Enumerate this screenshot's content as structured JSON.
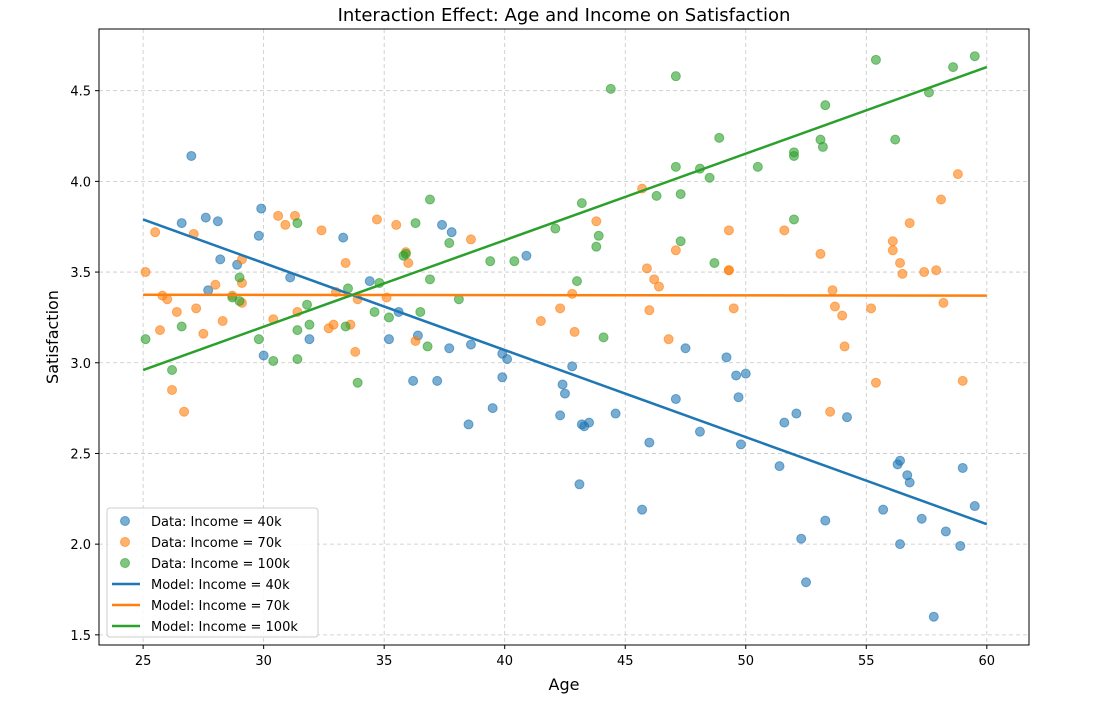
{
  "chart_data": {
    "type": "scatter",
    "title": "Interaction Effect: Age and Income on Satisfaction",
    "xlabel": "Age",
    "ylabel": "Satisfaction",
    "xlim": [
      23.17,
      61.75
    ],
    "ylim": [
      1.444,
      4.84
    ],
    "xticks": [
      25,
      30,
      35,
      40,
      45,
      50,
      55,
      60
    ],
    "xtick_labels": [
      "25",
      "30",
      "35",
      "40",
      "45",
      "50",
      "55",
      "60"
    ],
    "yticks": [
      1.5,
      2.0,
      2.5,
      3.0,
      3.5,
      4.0,
      4.5
    ],
    "ytick_labels": [
      "1.5",
      "2.0",
      "2.5",
      "3.0",
      "3.5",
      "4.0",
      "4.5"
    ],
    "grid": true,
    "legend_position": "lower-left",
    "scatter_series": [
      {
        "name": "Data: Income = 40k",
        "color": "#1f77b4",
        "x": [
          27.0,
          26.6,
          27.6,
          27.7,
          28.1,
          28.2,
          28.9,
          29.8,
          29.9,
          30.0,
          31.1,
          31.9,
          33.3,
          34.4,
          35.2,
          35.6,
          36.2,
          36.4,
          37.2,
          37.4,
          37.7,
          37.8,
          38.5,
          38.6,
          39.5,
          39.9,
          39.9,
          40.1,
          40.9,
          42.3,
          42.4,
          42.5,
          42.8,
          43.1,
          43.2,
          43.3,
          43.5,
          44.6,
          45.7,
          46.0,
          47.1,
          47.5,
          48.1,
          49.2,
          49.6,
          49.7,
          49.8,
          50.0,
          51.4,
          51.6,
          52.1,
          52.3,
          52.5,
          53.3,
          54.2,
          55.7,
          56.3,
          56.4,
          56.4,
          56.7,
          56.8,
          57.3,
          57.8,
          58.3,
          58.9,
          59.0,
          59.5
        ],
        "y": [
          4.14,
          3.77,
          3.8,
          3.4,
          3.78,
          3.57,
          3.54,
          3.7,
          3.85,
          3.04,
          3.47,
          3.13,
          3.69,
          3.45,
          3.13,
          3.28,
          2.9,
          3.15,
          2.9,
          3.76,
          3.08,
          3.72,
          2.66,
          3.1,
          2.75,
          3.05,
          2.92,
          3.02,
          3.59,
          2.71,
          2.88,
          2.83,
          2.98,
          2.33,
          2.66,
          2.65,
          2.67,
          2.72,
          2.19,
          2.56,
          2.8,
          3.08,
          2.62,
          3.03,
          2.93,
          2.81,
          2.55,
          2.94,
          2.43,
          2.67,
          2.72,
          2.03,
          1.79,
          2.13,
          2.7,
          2.19,
          2.44,
          2.0,
          2.46,
          2.38,
          2.34,
          2.14,
          1.6,
          2.07,
          1.99,
          2.42,
          2.21
        ]
      },
      {
        "name": "Data: Income = 70k",
        "color": "#ff7f0e",
        "x": [
          25.1,
          25.5,
          25.7,
          25.8,
          26.0,
          26.2,
          26.4,
          26.7,
          27.1,
          27.2,
          27.5,
          28.0,
          28.3,
          28.7,
          29.1,
          29.1,
          29.1,
          30.4,
          30.6,
          30.9,
          31.3,
          31.4,
          32.4,
          32.7,
          32.9,
          33.0,
          33.4,
          33.6,
          33.8,
          33.9,
          34.7,
          35.1,
          35.5,
          35.9,
          36.0,
          36.3,
          38.6,
          41.5,
          42.3,
          42.8,
          42.9,
          43.8,
          45.7,
          45.9,
          46.0,
          46.2,
          46.4,
          46.8,
          47.1,
          49.3,
          49.3,
          49.3,
          49.5,
          51.6,
          53.1,
          53.6,
          53.5,
          53.7,
          54.0,
          54.1,
          55.2,
          55.4,
          56.1,
          56.1,
          56.4,
          56.5,
          56.8,
          57.4,
          57.9,
          58.1,
          58.2,
          58.8,
          59.0
        ],
        "y": [
          3.5,
          3.72,
          3.18,
          3.37,
          3.35,
          2.85,
          3.28,
          2.73,
          3.71,
          3.3,
          3.16,
          3.43,
          3.23,
          3.37,
          3.33,
          3.57,
          3.44,
          3.24,
          3.81,
          3.76,
          3.81,
          3.28,
          3.73,
          3.19,
          3.21,
          3.39,
          3.55,
          3.21,
          3.06,
          3.35,
          3.79,
          3.36,
          3.76,
          3.61,
          3.55,
          3.12,
          3.68,
          3.23,
          3.3,
          3.38,
          3.17,
          3.78,
          3.96,
          3.52,
          3.29,
          3.46,
          3.42,
          3.13,
          3.62,
          3.73,
          3.51,
          3.51,
          3.3,
          3.73,
          3.6,
          3.4,
          2.73,
          3.31,
          3.26,
          3.09,
          3.3,
          2.89,
          3.67,
          3.62,
          3.55,
          3.49,
          3.77,
          3.5,
          3.51,
          3.9,
          3.33,
          4.04,
          2.9
        ]
      },
      {
        "name": "Data: Income = 100k",
        "color": "#2ca02c",
        "x": [
          25.1,
          26.2,
          26.6,
          28.7,
          29.0,
          29.0,
          29.8,
          30.4,
          31.4,
          31.4,
          31.4,
          31.8,
          31.9,
          33.4,
          33.5,
          33.9,
          34.6,
          34.8,
          35.2,
          35.8,
          35.9,
          36.3,
          36.5,
          36.8,
          36.9,
          36.9,
          37.7,
          38.1,
          39.4,
          40.4,
          42.1,
          43.0,
          43.2,
          43.8,
          43.9,
          44.1,
          44.4,
          46.3,
          47.1,
          47.1,
          47.3,
          47.3,
          48.1,
          48.5,
          48.7,
          48.9,
          50.5,
          52.0,
          52.0,
          52.0,
          53.1,
          53.2,
          53.3,
          55.4,
          56.2,
          57.6,
          58.6,
          59.5
        ],
        "y": [
          3.13,
          2.96,
          3.2,
          3.36,
          3.47,
          3.34,
          3.13,
          3.01,
          3.77,
          3.18,
          3.02,
          3.32,
          3.21,
          3.2,
          3.41,
          2.89,
          3.28,
          3.44,
          3.25,
          3.59,
          3.6,
          3.77,
          3.28,
          3.09,
          3.9,
          3.46,
          3.66,
          3.35,
          3.56,
          3.56,
          3.74,
          3.45,
          3.88,
          3.64,
          3.7,
          3.14,
          4.51,
          3.92,
          4.58,
          4.08,
          3.93,
          3.67,
          4.07,
          4.02,
          3.55,
          4.24,
          4.08,
          3.79,
          4.16,
          4.14,
          4.23,
          4.19,
          4.42,
          4.67,
          4.23,
          4.49,
          4.63,
          4.69
        ]
      }
    ],
    "line_series": [
      {
        "name": "Model: Income = 40k",
        "color": "#1f77b4",
        "x": [
          25,
          60
        ],
        "y": [
          3.79,
          2.11
        ]
      },
      {
        "name": "Model: Income = 70k",
        "color": "#ff7f0e",
        "x": [
          25,
          60
        ],
        "y": [
          3.375,
          3.37
        ]
      },
      {
        "name": "Model: Income = 100k",
        "color": "#2ca02c",
        "x": [
          25,
          60
        ],
        "y": [
          2.96,
          4.63
        ]
      }
    ]
  }
}
